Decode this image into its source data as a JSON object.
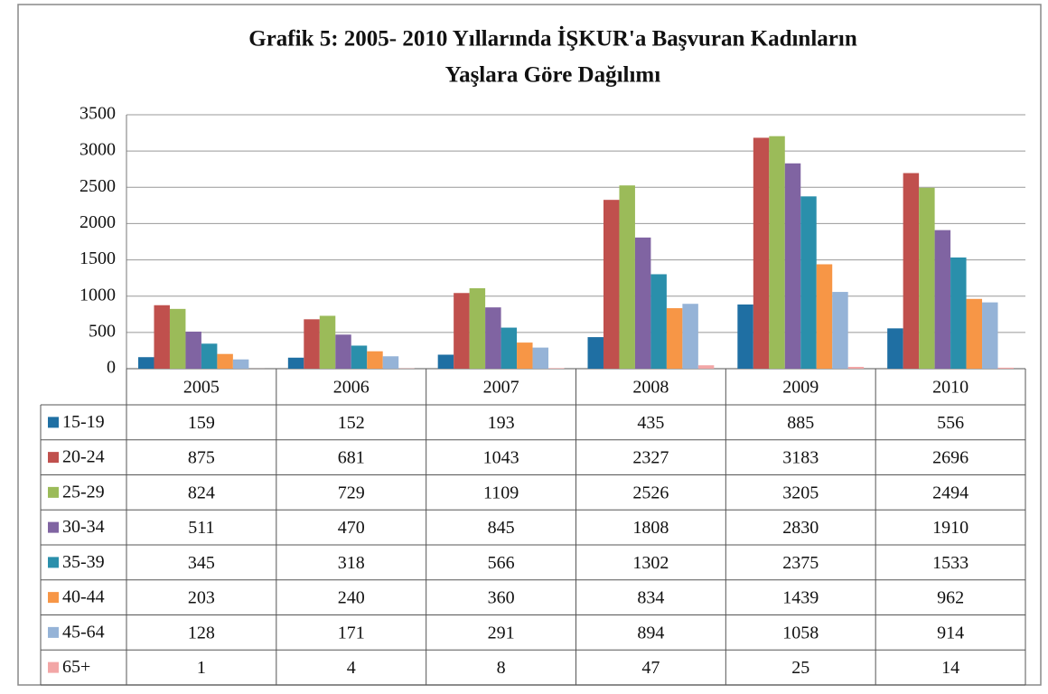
{
  "chart_data": {
    "type": "bar",
    "title": "Grafik 5: 2005- 2010 Yıllarında İŞKUR'a  Başvuran Kadınların",
    "subtitle": "Yaşlara Göre Dağılımı",
    "categories": [
      "2005",
      "2006",
      "2007",
      "2008",
      "2009",
      "2010"
    ],
    "series": [
      {
        "name": "15-19",
        "color": "#1f6fa3",
        "values": [
          159,
          152,
          193,
          435,
          885,
          556
        ]
      },
      {
        "name": "20-24",
        "color": "#c0504d",
        "values": [
          875,
          681,
          1043,
          2327,
          3183,
          2696
        ]
      },
      {
        "name": "25-29",
        "color": "#9bbb59",
        "values": [
          824,
          729,
          1109,
          2526,
          3205,
          2494
        ]
      },
      {
        "name": "30-34",
        "color": "#8064a2",
        "values": [
          511,
          470,
          845,
          1808,
          2830,
          1910
        ]
      },
      {
        "name": "35-39",
        "color": "#2a8fab",
        "values": [
          345,
          318,
          566,
          1302,
          2375,
          1533
        ]
      },
      {
        "name": "40-44",
        "color": "#f79646",
        "values": [
          203,
          240,
          360,
          834,
          1439,
          962
        ]
      },
      {
        "name": "45-64",
        "color": "#95b3d7",
        "values": [
          128,
          171,
          291,
          894,
          1058,
          914
        ]
      },
      {
        "name": "65+",
        "color": "#f2a6a6",
        "values": [
          1,
          4,
          8,
          47,
          25,
          14
        ]
      }
    ],
    "ylim": [
      0,
      3500
    ],
    "yticks": [
      0,
      500,
      1000,
      1500,
      2000,
      2500,
      3000,
      3500
    ],
    "grid": true
  }
}
